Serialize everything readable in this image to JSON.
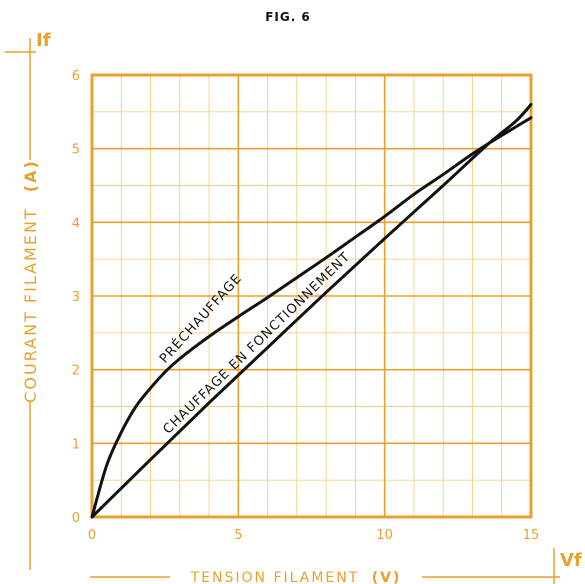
{
  "figure_title": "FIG. 6",
  "colors": {
    "accent": "#e8a12c",
    "grid": "#f0d27a",
    "curve": "#111111"
  },
  "chart_data": {
    "type": "line",
    "xlabel": "TENSION  FILAMENT",
    "xunit": "(V)",
    "ylabel": "COURANT  FILAMENT",
    "yunit": "(A)",
    "y_axis_tag": "If",
    "x_axis_tag": "Vf",
    "xlim": [
      0,
      15
    ],
    "ylim": [
      0,
      6
    ],
    "x_ticks": [
      0,
      5,
      10,
      15
    ],
    "y_ticks": [
      0,
      1,
      2,
      3,
      4,
      5,
      6
    ],
    "grid": true,
    "series": [
      {
        "name": "PRÉCHAUFFAGE",
        "x": [
          0,
          0.5,
          1,
          1.5,
          2,
          2.5,
          3,
          4,
          5,
          6,
          7,
          8,
          9,
          10,
          11,
          12,
          13,
          14,
          15
        ],
        "y": [
          0,
          0.7,
          1.15,
          1.5,
          1.75,
          1.97,
          2.15,
          2.45,
          2.72,
          2.98,
          3.25,
          3.52,
          3.8,
          4.08,
          4.38,
          4.65,
          4.93,
          5.18,
          5.42
        ]
      },
      {
        "name": "CHAUFFAGE  EN  FONCTIONNEMENT",
        "x": [
          0,
          2,
          4,
          6,
          8,
          10,
          12,
          13.5,
          14.5,
          15
        ],
        "y": [
          0,
          0.78,
          1.55,
          2.3,
          3.05,
          3.78,
          4.5,
          5.05,
          5.38,
          5.6
        ]
      }
    ]
  }
}
